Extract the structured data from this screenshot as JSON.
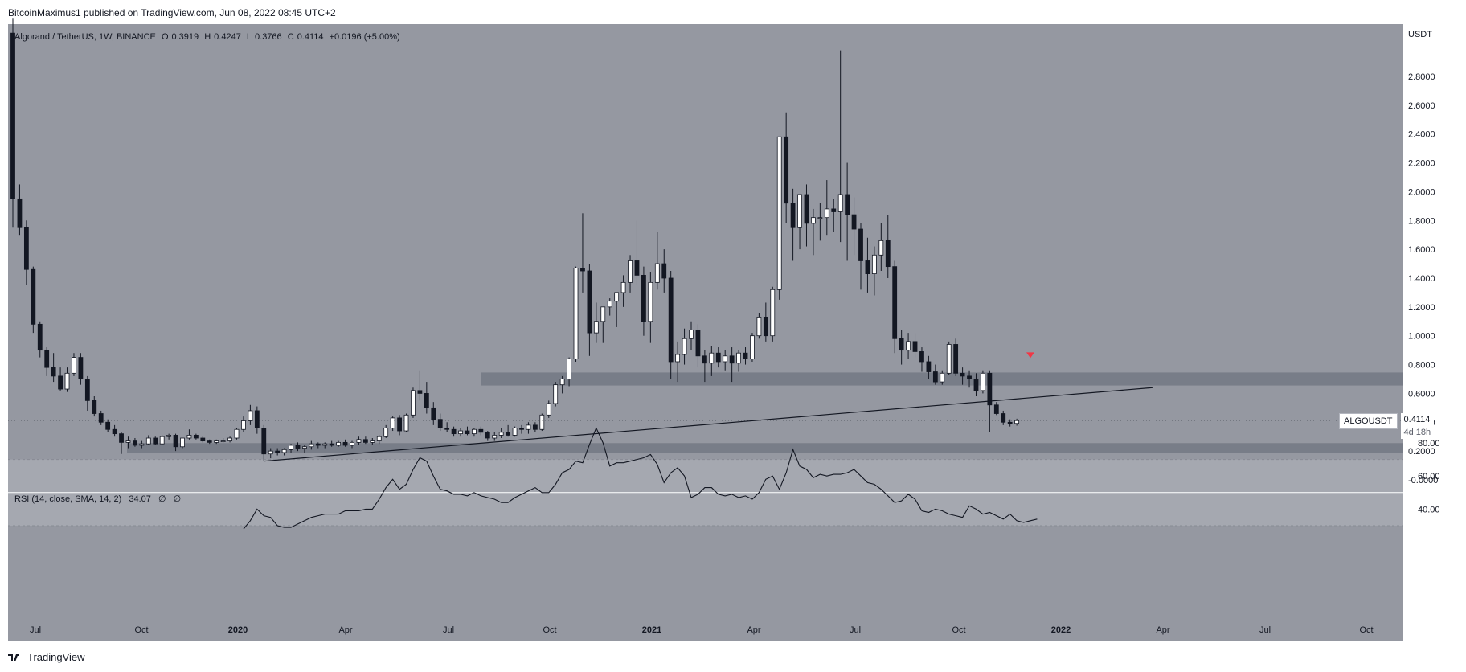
{
  "header": {
    "publisher_line": "BitcoinMaximus1 published on TradingView.com, Jun 08, 2022 08:45 UTC+2"
  },
  "legend": {
    "symbol": "Algorand / TetherUS, 1W, BINANCE",
    "open_label": "O",
    "open": "0.3919",
    "high_label": "H",
    "high": "0.4247",
    "low_label": "L",
    "low": "0.3766",
    "close_label": "C",
    "close": "0.4114",
    "change": "+0.0196 (+5.00%)"
  },
  "price_axis": {
    "unit": "USDT",
    "ticks": [
      "2.8000",
      "2.6000",
      "2.4000",
      "2.2000",
      "2.0000",
      "1.8000",
      "1.6000",
      "1.4000",
      "1.2000",
      "1.0000",
      "0.8000",
      "0.6000",
      "0.4000",
      "0.2000",
      "-0.0000"
    ]
  },
  "price_tag": {
    "symbol": "ALGOUSDT",
    "price": "0.4114",
    "countdown": "4d 18h"
  },
  "rsi": {
    "label": "RSI (14, close, SMA, 14, 2)",
    "value": "34.07",
    "ma1": "∅",
    "ma2": "∅",
    "ticks": [
      "80.00",
      "60.00",
      "40.00"
    ]
  },
  "time_axis": {
    "labels": [
      "Jul",
      "Oct",
      "2020",
      "Apr",
      "Jul",
      "Oct",
      "2021",
      "Apr",
      "Jul",
      "Oct",
      "2022",
      "Apr",
      "Jul",
      "Oct"
    ]
  },
  "footer": {
    "brand": "TradingView"
  },
  "colors": {
    "up": "#ffffff",
    "down": "#131722",
    "background": "#9598a1",
    "zone": "#6f7480",
    "marker": "#f23645"
  },
  "chart_data": [
    {
      "type": "candlestick",
      "title": "Algorand / TetherUS, 1W, BINANCE",
      "ylabel": "USDT",
      "ylim": [
        0,
        3.0
      ],
      "x_start": "2019-06-24",
      "x_interval": "1W",
      "ohlc": [
        [
          3.1,
          3.2,
          1.75,
          1.95
        ],
        [
          1.95,
          2.05,
          1.7,
          1.75
        ],
        [
          1.75,
          1.8,
          1.35,
          1.46
        ],
        [
          1.46,
          1.48,
          1.02,
          1.08
        ],
        [
          1.08,
          1.1,
          0.85,
          0.9
        ],
        [
          0.9,
          0.92,
          0.72,
          0.78
        ],
        [
          0.78,
          0.88,
          0.68,
          0.72
        ],
        [
          0.72,
          0.78,
          0.62,
          0.63
        ],
        [
          0.63,
          0.78,
          0.61,
          0.74
        ],
        [
          0.74,
          0.88,
          0.72,
          0.85
        ],
        [
          0.85,
          0.88,
          0.66,
          0.7
        ],
        [
          0.7,
          0.72,
          0.48,
          0.55
        ],
        [
          0.55,
          0.58,
          0.44,
          0.46
        ],
        [
          0.46,
          0.48,
          0.38,
          0.4
        ],
        [
          0.4,
          0.42,
          0.33,
          0.35
        ],
        [
          0.35,
          0.38,
          0.3,
          0.32
        ],
        [
          0.32,
          0.33,
          0.18,
          0.26
        ],
        [
          0.26,
          0.3,
          0.22,
          0.27
        ],
        [
          0.27,
          0.29,
          0.23,
          0.24
        ],
        [
          0.24,
          0.27,
          0.22,
          0.25
        ],
        [
          0.25,
          0.31,
          0.24,
          0.29
        ],
        [
          0.29,
          0.3,
          0.24,
          0.25
        ],
        [
          0.25,
          0.31,
          0.24,
          0.3
        ],
        [
          0.3,
          0.32,
          0.28,
          0.31
        ],
        [
          0.31,
          0.32,
          0.2,
          0.23
        ],
        [
          0.23,
          0.29,
          0.22,
          0.29
        ],
        [
          0.29,
          0.35,
          0.28,
          0.31
        ],
        [
          0.31,
          0.32,
          0.28,
          0.29
        ],
        [
          0.29,
          0.3,
          0.26,
          0.27
        ],
        [
          0.27,
          0.28,
          0.25,
          0.26
        ],
        [
          0.26,
          0.28,
          0.25,
          0.27
        ],
        [
          0.27,
          0.29,
          0.26,
          0.27
        ],
        [
          0.27,
          0.3,
          0.26,
          0.29
        ],
        [
          0.29,
          0.36,
          0.28,
          0.35
        ],
        [
          0.35,
          0.44,
          0.33,
          0.41
        ],
        [
          0.41,
          0.52,
          0.38,
          0.48
        ],
        [
          0.48,
          0.51,
          0.32,
          0.36
        ],
        [
          0.36,
          0.38,
          0.13,
          0.18
        ],
        [
          0.18,
          0.22,
          0.15,
          0.2
        ],
        [
          0.2,
          0.22,
          0.17,
          0.19
        ],
        [
          0.19,
          0.22,
          0.17,
          0.21
        ],
        [
          0.21,
          0.25,
          0.19,
          0.24
        ],
        [
          0.24,
          0.26,
          0.2,
          0.22
        ],
        [
          0.22,
          0.24,
          0.19,
          0.23
        ],
        [
          0.23,
          0.27,
          0.21,
          0.25
        ],
        [
          0.25,
          0.26,
          0.22,
          0.24
        ],
        [
          0.24,
          0.26,
          0.22,
          0.25
        ],
        [
          0.25,
          0.27,
          0.23,
          0.24
        ],
        [
          0.24,
          0.27,
          0.23,
          0.26
        ],
        [
          0.26,
          0.28,
          0.23,
          0.24
        ],
        [
          0.24,
          0.27,
          0.22,
          0.26
        ],
        [
          0.26,
          0.3,
          0.24,
          0.28
        ],
        [
          0.28,
          0.3,
          0.25,
          0.26
        ],
        [
          0.26,
          0.29,
          0.24,
          0.27
        ],
        [
          0.27,
          0.31,
          0.25,
          0.3
        ],
        [
          0.3,
          0.38,
          0.29,
          0.36
        ],
        [
          0.36,
          0.44,
          0.34,
          0.43
        ],
        [
          0.43,
          0.45,
          0.31,
          0.34
        ],
        [
          0.34,
          0.46,
          0.33,
          0.45
        ],
        [
          0.45,
          0.64,
          0.43,
          0.62
        ],
        [
          0.62,
          0.76,
          0.55,
          0.6
        ],
        [
          0.6,
          0.68,
          0.46,
          0.5
        ],
        [
          0.5,
          0.54,
          0.38,
          0.42
        ],
        [
          0.42,
          0.46,
          0.34,
          0.36
        ],
        [
          0.36,
          0.4,
          0.33,
          0.35
        ],
        [
          0.35,
          0.37,
          0.3,
          0.32
        ],
        [
          0.32,
          0.36,
          0.3,
          0.34
        ],
        [
          0.34,
          0.37,
          0.31,
          0.32
        ],
        [
          0.32,
          0.36,
          0.3,
          0.35
        ],
        [
          0.35,
          0.37,
          0.31,
          0.33
        ],
        [
          0.33,
          0.34,
          0.27,
          0.29
        ],
        [
          0.29,
          0.33,
          0.27,
          0.31
        ],
        [
          0.31,
          0.36,
          0.29,
          0.33
        ],
        [
          0.33,
          0.38,
          0.3,
          0.31
        ],
        [
          0.31,
          0.37,
          0.3,
          0.36
        ],
        [
          0.36,
          0.38,
          0.32,
          0.35
        ],
        [
          0.35,
          0.4,
          0.32,
          0.38
        ],
        [
          0.38,
          0.4,
          0.33,
          0.35
        ],
        [
          0.35,
          0.46,
          0.34,
          0.45
        ],
        [
          0.45,
          0.55,
          0.43,
          0.53
        ],
        [
          0.53,
          0.68,
          0.51,
          0.66
        ],
        [
          0.66,
          0.72,
          0.6,
          0.7
        ],
        [
          0.7,
          0.85,
          0.65,
          0.84
        ],
        [
          0.84,
          1.48,
          0.82,
          1.47
        ],
        [
          1.47,
          1.85,
          1.3,
          1.45
        ],
        [
          1.45,
          1.5,
          0.86,
          1.02
        ],
        [
          1.02,
          1.23,
          0.95,
          1.1
        ],
        [
          1.1,
          1.18,
          0.95,
          1.2
        ],
        [
          1.2,
          1.26,
          1.14,
          1.24
        ],
        [
          1.24,
          1.28,
          1.06,
          1.3
        ],
        [
          1.3,
          1.42,
          1.2,
          1.37
        ],
        [
          1.37,
          1.56,
          1.3,
          1.52
        ],
        [
          1.52,
          1.8,
          1.35,
          1.42
        ],
        [
          1.42,
          1.48,
          1.0,
          1.1
        ],
        [
          1.1,
          1.44,
          0.95,
          1.37
        ],
        [
          1.37,
          1.72,
          1.32,
          1.5
        ],
        [
          1.5,
          1.6,
          1.3,
          1.4
        ],
        [
          1.4,
          1.45,
          0.7,
          0.82
        ],
        [
          0.82,
          0.96,
          0.68,
          0.87
        ],
        [
          0.87,
          1.05,
          0.8,
          0.98
        ],
        [
          0.98,
          1.1,
          0.9,
          1.04
        ],
        [
          1.04,
          1.08,
          0.78,
          0.86
        ],
        [
          0.86,
          0.9,
          0.68,
          0.81
        ],
        [
          0.81,
          0.93,
          0.72,
          0.88
        ],
        [
          0.88,
          0.92,
          0.78,
          0.82
        ],
        [
          0.82,
          0.9,
          0.76,
          0.86
        ],
        [
          0.86,
          0.92,
          0.68,
          0.81
        ],
        [
          0.81,
          0.9,
          0.75,
          0.88
        ],
        [
          0.88,
          0.92,
          0.8,
          0.84
        ],
        [
          0.84,
          1.02,
          0.82,
          1.0
        ],
        [
          1.0,
          1.16,
          0.98,
          1.13
        ],
        [
          1.13,
          1.23,
          0.96,
          1.0
        ],
        [
          1.0,
          1.34,
          0.96,
          1.32
        ],
        [
          1.32,
          2.38,
          1.25,
          2.38
        ],
        [
          2.38,
          2.55,
          1.78,
          1.92
        ],
        [
          1.92,
          2.02,
          1.52,
          1.75
        ],
        [
          1.75,
          1.98,
          1.6,
          1.98
        ],
        [
          1.98,
          2.05,
          1.62,
          1.78
        ],
        [
          1.78,
          1.88,
          1.56,
          1.82
        ],
        [
          1.82,
          1.92,
          1.66,
          1.82
        ],
        [
          1.82,
          2.08,
          1.7,
          1.88
        ],
        [
          1.88,
          1.95,
          1.72,
          1.86
        ],
        [
          1.86,
          2.98,
          1.65,
          1.98
        ],
        [
          1.98,
          2.2,
          1.52,
          1.84
        ],
        [
          1.84,
          1.96,
          1.56,
          1.74
        ],
        [
          1.74,
          1.78,
          1.32,
          1.52
        ],
        [
          1.52,
          1.68,
          1.3,
          1.43
        ],
        [
          1.43,
          1.62,
          1.28,
          1.56
        ],
        [
          1.56,
          1.78,
          1.45,
          1.66
        ],
        [
          1.66,
          1.84,
          1.4,
          1.48
        ],
        [
          1.48,
          1.52,
          0.88,
          0.98
        ],
        [
          0.98,
          1.04,
          0.8,
          0.9
        ],
        [
          0.9,
          1.02,
          0.84,
          0.96
        ],
        [
          0.96,
          1.02,
          0.85,
          0.89
        ],
        [
          0.89,
          0.92,
          0.75,
          0.82
        ],
        [
          0.82,
          0.86,
          0.7,
          0.75
        ],
        [
          0.75,
          0.8,
          0.66,
          0.68
        ],
        [
          0.68,
          0.76,
          0.66,
          0.74
        ],
        [
          0.74,
          0.96,
          0.73,
          0.94
        ],
        [
          0.94,
          0.98,
          0.72,
          0.74
        ],
        [
          0.74,
          0.78,
          0.66,
          0.72
        ],
        [
          0.72,
          0.76,
          0.64,
          0.7
        ],
        [
          0.7,
          0.74,
          0.58,
          0.62
        ],
        [
          0.62,
          0.76,
          0.6,
          0.74
        ],
        [
          0.74,
          0.76,
          0.33,
          0.52
        ],
        [
          0.52,
          0.54,
          0.45,
          0.46
        ],
        [
          0.46,
          0.48,
          0.38,
          0.4
        ],
        [
          0.4,
          0.42,
          0.37,
          0.39
        ],
        [
          0.3919,
          0.4247,
          0.3766,
          0.4114
        ]
      ]
    },
    {
      "type": "line",
      "title": "RSI (14, close, SMA, 14, 2)",
      "ylim": [
        20,
        100
      ],
      "reference_lines": [
        70,
        50,
        30
      ],
      "values": [
        null,
        null,
        null,
        null,
        null,
        null,
        null,
        null,
        null,
        null,
        null,
        null,
        null,
        null,
        null,
        null,
        null,
        null,
        null,
        null,
        null,
        null,
        null,
        null,
        null,
        null,
        null,
        null,
        null,
        null,
        null,
        null,
        null,
        null,
        28,
        33,
        40,
        36,
        35,
        30,
        29,
        29,
        31,
        33,
        35,
        36,
        37,
        37,
        37,
        39,
        39,
        39,
        40,
        40,
        46,
        53,
        58,
        52,
        55,
        64,
        71,
        69,
        60,
        52,
        51,
        49,
        49,
        48,
        50,
        48,
        47,
        46,
        44,
        44,
        47,
        49,
        51,
        53,
        50,
        50,
        55,
        62,
        64,
        69,
        68,
        79,
        89,
        80,
        66,
        68,
        68,
        69,
        70,
        71,
        73,
        67,
        56,
        62,
        65,
        60,
        47,
        49,
        53,
        53,
        49,
        48,
        49,
        47,
        48,
        46,
        50,
        58,
        60,
        52,
        62,
        76,
        66,
        64,
        59,
        61,
        60,
        61,
        61,
        62,
        64,
        60,
        56,
        55,
        52,
        48,
        44,
        45,
        49,
        46,
        39,
        38,
        40,
        39,
        37,
        36,
        35,
        42,
        40,
        37,
        38,
        36,
        34,
        37,
        33,
        32,
        33,
        34
      ]
    }
  ],
  "annotations": {
    "resistance_zone": [
      0.655,
      0.745
    ],
    "support_zone": [
      0.185,
      0.255
    ],
    "trendline": {
      "from_index": 37,
      "from_value": 0.13,
      "to_index": 168,
      "to_value": 0.64
    },
    "marker": {
      "index": 150,
      "value": 0.84,
      "shape": "down-triangle"
    }
  }
}
